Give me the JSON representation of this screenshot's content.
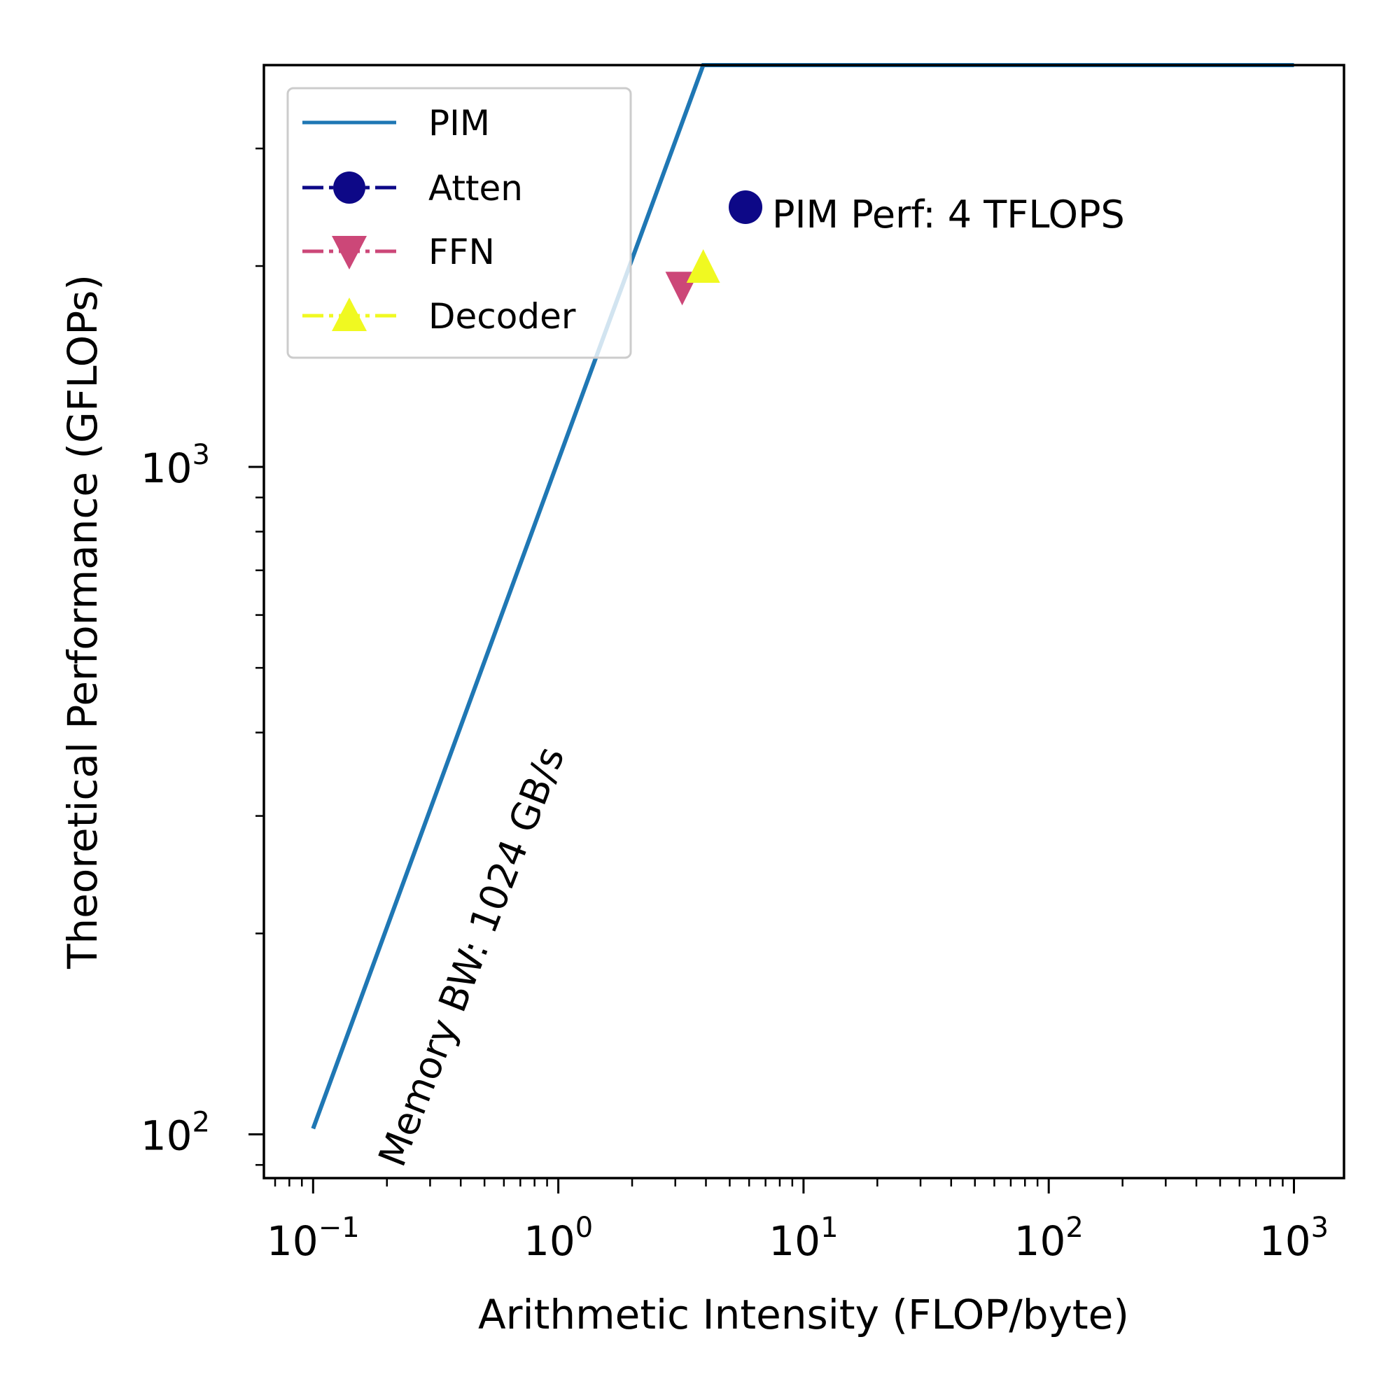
{
  "chart_data": {
    "type": "line",
    "xlabel": "Arithmetic Intensity (FLOP/byte)",
    "ylabel": "Theoretical Performance (GFLOPs)",
    "xscale": "log",
    "yscale": "log",
    "xlim": [
      0.063,
      1600
    ],
    "ylim": [
      86,
      4000
    ],
    "grid": false,
    "legend_position": "top-left",
    "x_ticks": [
      {
        "value": 0.1,
        "base": "10",
        "exp": "−1"
      },
      {
        "value": 1,
        "base": "10",
        "exp": "0"
      },
      {
        "value": 10,
        "base": "10",
        "exp": "1"
      },
      {
        "value": 100,
        "base": "10",
        "exp": "2"
      },
      {
        "value": 1000,
        "base": "10",
        "exp": "3"
      }
    ],
    "y_ticks": [
      {
        "value": 100,
        "base": "10",
        "exp": "2"
      },
      {
        "value": 1000,
        "base": "10",
        "exp": "3"
      }
    ],
    "series": [
      {
        "name": "PIM",
        "color": "#1f77b4",
        "style": "line",
        "x": [
          0.1,
          3.9,
          1000
        ],
        "y": [
          102,
          4000,
          4000
        ]
      },
      {
        "name": "Atten",
        "color": "#0d0887",
        "style": "marker",
        "marker": "circle",
        "x": [
          5.8
        ],
        "y": [
          2450
        ]
      },
      {
        "name": "FFN",
        "color": "#cc4778",
        "style": "marker",
        "marker": "triangle-down",
        "x": [
          3.2
        ],
        "y": [
          1850
        ]
      },
      {
        "name": "Decoder",
        "color": "#f0f921",
        "style": "marker",
        "marker": "triangle-up",
        "x": [
          3.9
        ],
        "y": [
          2000
        ]
      }
    ],
    "annotations": [
      {
        "text": "PIM Perf: 4 TFLOPS"
      },
      {
        "text": "Memory BW: 1024 GB/s"
      }
    ]
  }
}
